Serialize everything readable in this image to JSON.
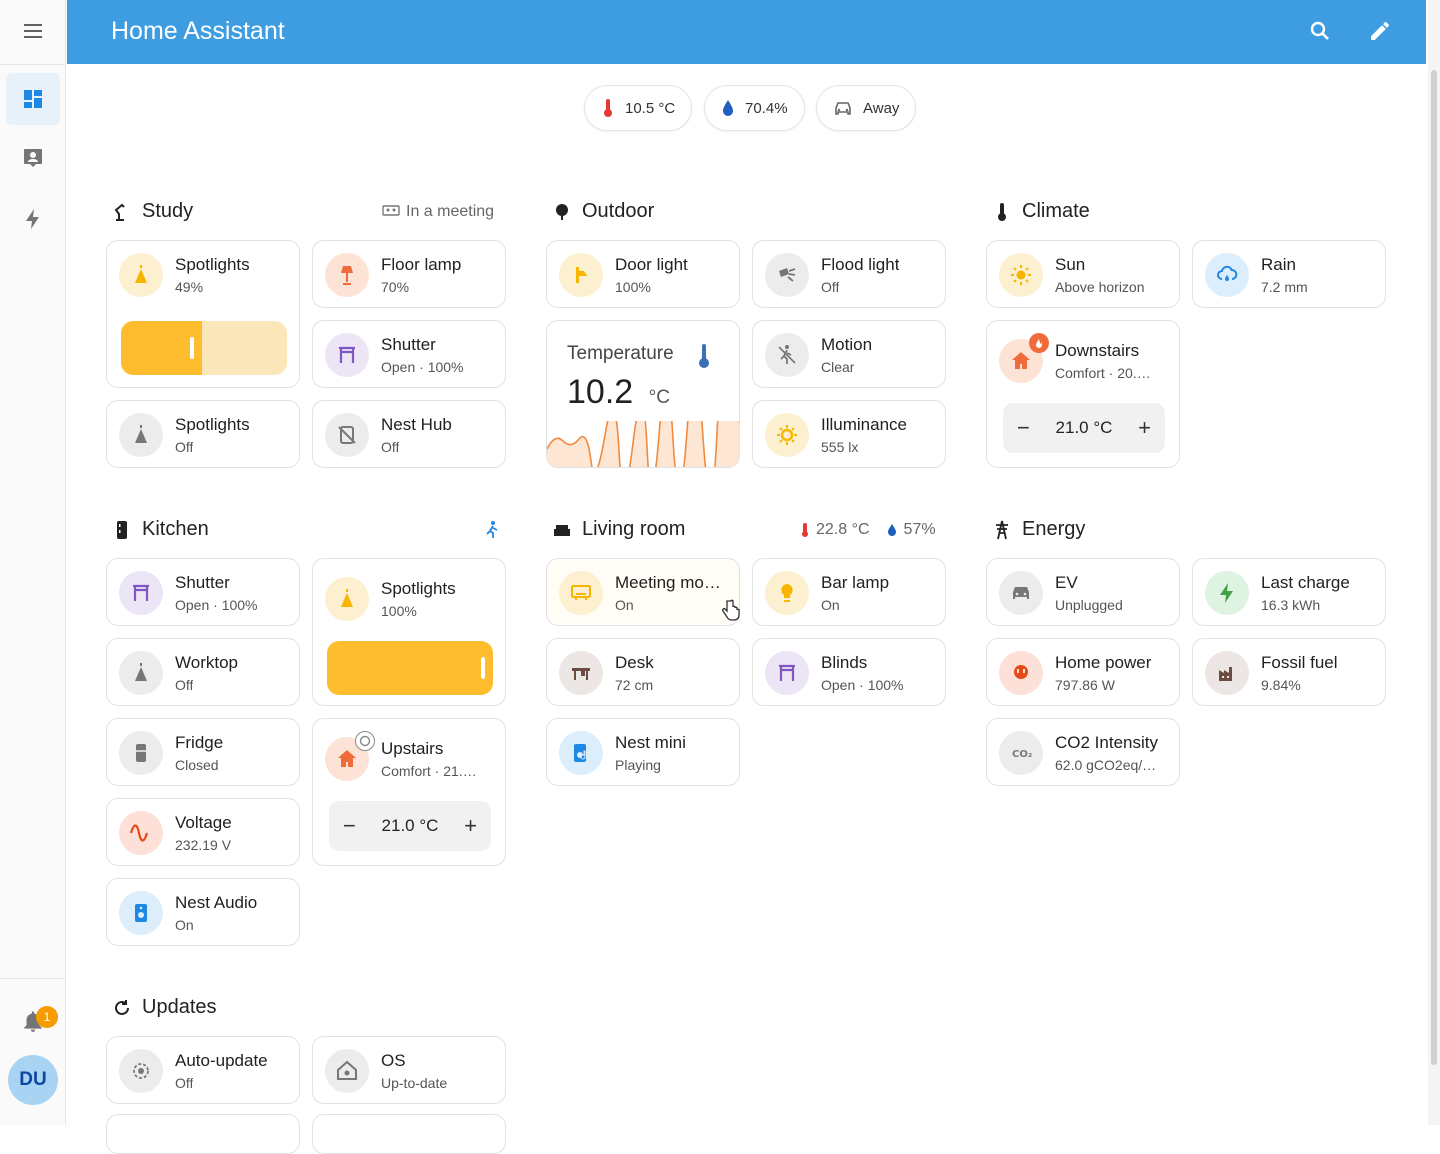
{
  "header": {
    "title": "Home Assistant"
  },
  "sidebar": {
    "user_initials": "DU",
    "notification_count": "1"
  },
  "badges": [
    {
      "label": "10.5 °C",
      "icon": "thermometer-icon"
    },
    {
      "label": "70.4%",
      "icon": "water-drop-icon"
    },
    {
      "label": "Away",
      "icon": "car-icon"
    }
  ],
  "sections": {
    "study": {
      "title": "Study",
      "side": "In a meeting"
    },
    "outdoor": {
      "title": "Outdoor"
    },
    "climate": {
      "title": "Climate"
    },
    "kitchen": {
      "title": "Kitchen"
    },
    "living": {
      "title": "Living room",
      "temp": "22.8 °C",
      "humidity": "57%"
    },
    "energy": {
      "title": "Energy"
    },
    "updates": {
      "title": "Updates"
    }
  },
  "tiles": {
    "study_spotlights_on": {
      "name": "Spotlights",
      "state": "49%",
      "level": 49
    },
    "study_floor_lamp": {
      "name": "Floor lamp",
      "state": "70%"
    },
    "study_shutter": {
      "name": "Shutter",
      "state": "Open · 100%"
    },
    "study_spotlights_off": {
      "name": "Spotlights",
      "state": "Off"
    },
    "study_nest_hub": {
      "name": "Nest Hub",
      "state": "Off"
    },
    "outdoor_door_light": {
      "name": "Door light",
      "state": "100%"
    },
    "outdoor_flood_light": {
      "name": "Flood light",
      "state": "Off"
    },
    "outdoor_temperature": {
      "name": "Temperature",
      "value": "10.2",
      "unit": "°C"
    },
    "outdoor_motion": {
      "name": "Motion",
      "state": "Clear"
    },
    "outdoor_illuminance": {
      "name": "Illuminance",
      "state": "555 lx"
    },
    "climate_sun": {
      "name": "Sun",
      "state": "Above horizon"
    },
    "climate_rain": {
      "name": "Rain",
      "state": "7.2 mm"
    },
    "climate_downstairs": {
      "name": "Downstairs",
      "state": "Comfort · 20.…",
      "setpoint": "21.0 °C"
    },
    "kitchen_shutter": {
      "name": "Shutter",
      "state": "Open · 100%"
    },
    "kitchen_spotlights": {
      "name": "Spotlights",
      "state": "100%",
      "level": 100
    },
    "kitchen_worktop": {
      "name": "Worktop",
      "state": "Off"
    },
    "kitchen_fridge": {
      "name": "Fridge",
      "state": "Closed"
    },
    "kitchen_upstairs": {
      "name": "Upstairs",
      "state": "Comfort · 21.…",
      "setpoint": "21.0 °C"
    },
    "kitchen_voltage": {
      "name": "Voltage",
      "state": "232.19 V"
    },
    "kitchen_nest_audio": {
      "name": "Nest Audio",
      "state": "On"
    },
    "living_meeting": {
      "name": "Meeting mo…",
      "state": "On"
    },
    "living_bar_lamp": {
      "name": "Bar lamp",
      "state": "On"
    },
    "living_desk": {
      "name": "Desk",
      "state": "72 cm"
    },
    "living_blinds": {
      "name": "Blinds",
      "state": "Open · 100%"
    },
    "living_nest_mini": {
      "name": "Nest mini",
      "state": "Playing"
    },
    "energy_ev": {
      "name": "EV",
      "state": "Unplugged"
    },
    "energy_last_charge": {
      "name": "Last charge",
      "state": "16.3 kWh"
    },
    "energy_home_power": {
      "name": "Home power",
      "state": "797.86 W"
    },
    "energy_fossil": {
      "name": "Fossil fuel",
      "state": "9.84%"
    },
    "energy_co2": {
      "name": "CO2 Intensity",
      "state": "62.0 gCO2eq/…"
    },
    "updates_auto": {
      "name": "Auto-update",
      "state": "Off"
    },
    "updates_os": {
      "name": "OS",
      "state": "Up-to-date"
    }
  },
  "colors": {
    "header": "#3d9de0",
    "accent": "#1e88e5",
    "light_on": "#fdbd2e"
  }
}
